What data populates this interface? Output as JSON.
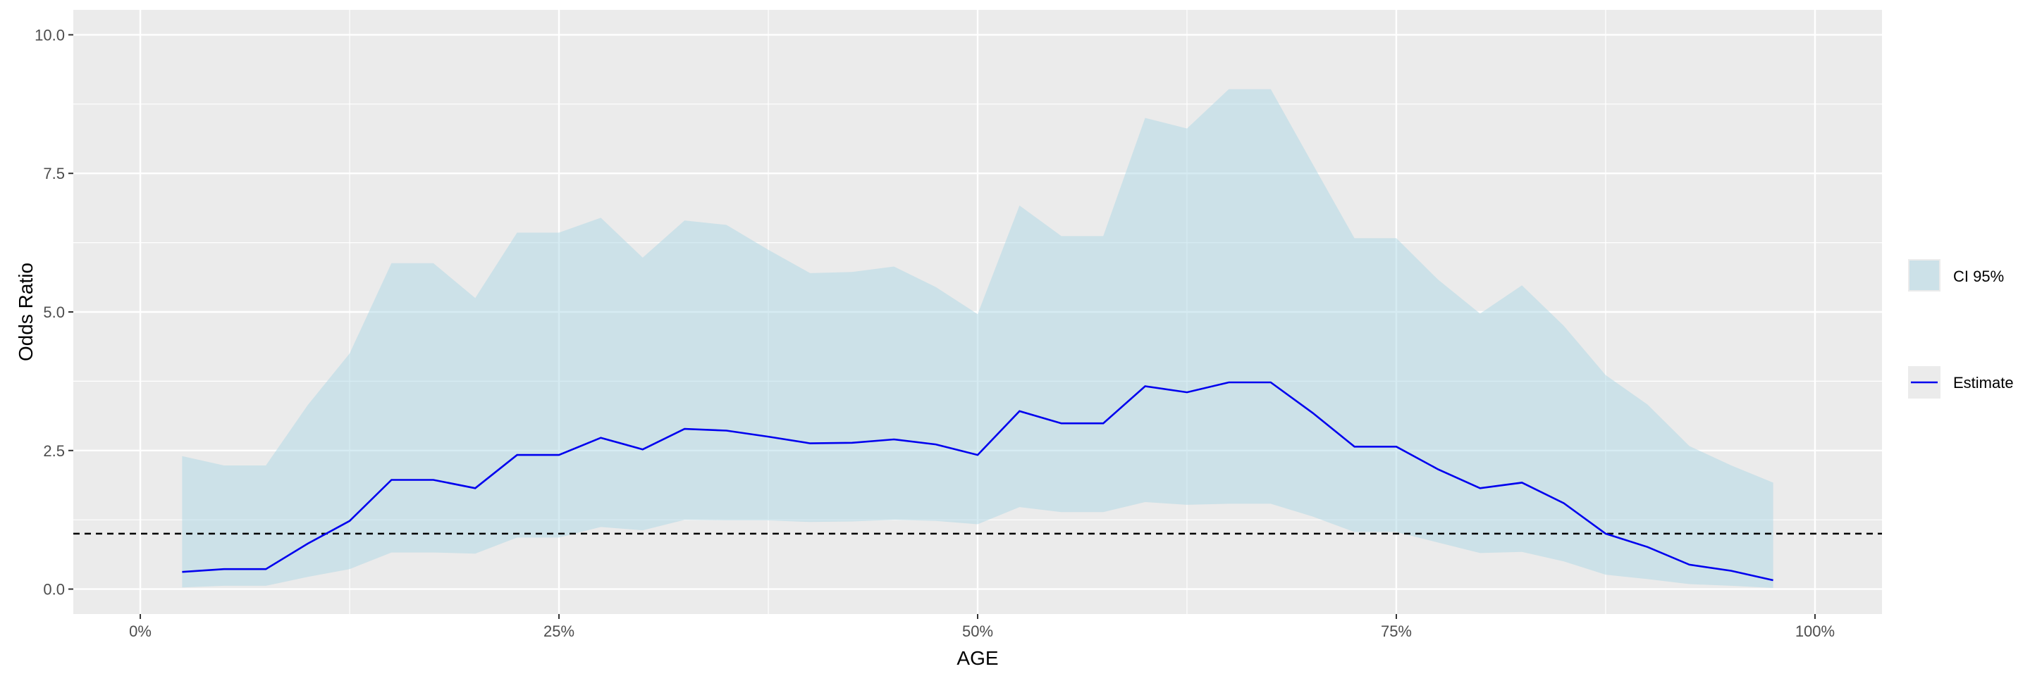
{
  "chart_data": {
    "type": "area",
    "xlabel": "AGE",
    "ylabel": "Odds Ratio",
    "xlim": [
      -0.04,
      1.04
    ],
    "ylim": [
      -0.45,
      10.45
    ],
    "x_ticks": [
      0,
      0.25,
      0.5,
      0.75,
      1.0
    ],
    "x_tick_labels": [
      "0%",
      "25%",
      "50%",
      "75%",
      "100%"
    ],
    "y_ticks": [
      0,
      2.5,
      5,
      7.5,
      10
    ],
    "y_tick_labels": [
      "0.0",
      "2.5",
      "5.0",
      "7.5",
      "10.0"
    ],
    "reference_line": {
      "y": 1.0,
      "style": "dashed",
      "color": "#000000"
    },
    "grid": true,
    "legend_position": "right",
    "x": [
      0.025,
      0.05,
      0.075,
      0.1,
      0.125,
      0.15,
      0.175,
      0.2,
      0.225,
      0.25,
      0.275,
      0.3,
      0.325,
      0.35,
      0.375,
      0.4,
      0.425,
      0.45,
      0.475,
      0.5,
      0.525,
      0.55,
      0.575,
      0.6,
      0.625,
      0.65,
      0.675,
      0.7,
      0.725,
      0.75,
      0.775,
      0.8,
      0.825,
      0.85,
      0.875,
      0.9,
      0.925,
      0.95,
      0.975
    ],
    "series": [
      {
        "name": "Estimate",
        "type": "line",
        "color": "#0000ee",
        "values": [
          0.31,
          0.36,
          0.36,
          0.82,
          1.23,
          1.97,
          1.97,
          1.82,
          2.42,
          2.42,
          2.73,
          2.52,
          2.89,
          2.86,
          2.75,
          2.63,
          2.64,
          2.7,
          2.61,
          2.42,
          3.21,
          2.99,
          2.99,
          3.66,
          3.55,
          3.73,
          3.73,
          3.18,
          2.57,
          2.57,
          2.16,
          1.82,
          1.92,
          1.55,
          1.0,
          0.76,
          0.44,
          0.33,
          0.16
        ]
      },
      {
        "name": "CI 95%",
        "type": "ribbon",
        "color": "#add8e6",
        "lower": [
          0.03,
          0.06,
          0.06,
          0.22,
          0.36,
          0.66,
          0.66,
          0.64,
          0.93,
          0.93,
          1.12,
          1.06,
          1.25,
          1.24,
          1.24,
          1.21,
          1.22,
          1.25,
          1.23,
          1.17,
          1.48,
          1.39,
          1.39,
          1.57,
          1.52,
          1.54,
          1.54,
          1.31,
          1.03,
          1.03,
          0.84,
          0.65,
          0.67,
          0.5,
          0.26,
          0.18,
          0.09,
          0.06,
          0.02
        ],
        "upper": [
          2.4,
          2.23,
          2.23,
          3.32,
          4.25,
          5.88,
          5.88,
          5.25,
          6.43,
          6.43,
          6.7,
          5.98,
          6.65,
          6.57,
          6.12,
          5.7,
          5.72,
          5.82,
          5.45,
          4.96,
          6.92,
          6.37,
          6.37,
          8.5,
          8.31,
          9.02,
          9.02,
          7.67,
          6.33,
          6.33,
          5.58,
          4.97,
          5.48,
          4.75,
          3.86,
          3.33,
          2.58,
          2.23,
          1.92
        ]
      }
    ],
    "legend": [
      {
        "label": "CI 95%",
        "kind": "fill"
      },
      {
        "label": "Estimate",
        "kind": "line"
      }
    ]
  }
}
